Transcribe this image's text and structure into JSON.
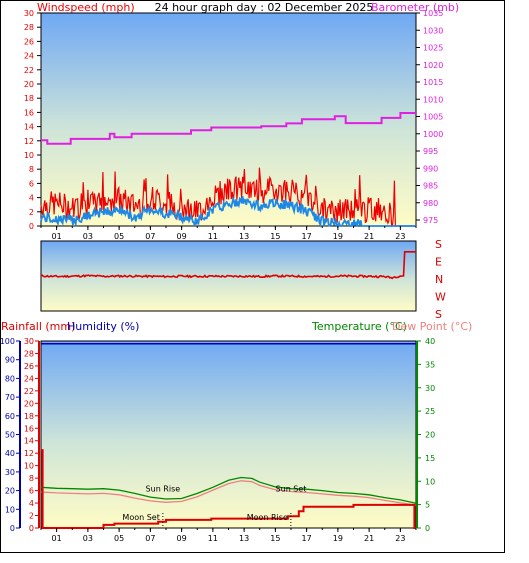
{
  "header": {
    "left_label": "Windspeed (mph)",
    "center_title": "24 hour graph day : 02 December 2025",
    "right_label": "Barometer (mb)"
  },
  "colors": {
    "wind": "#ee0000",
    "gust": "#1e88e5",
    "baro": "#e020e0",
    "direction": "#dd0000",
    "temperature": "#008800",
    "dewpoint": "#f08080",
    "rain": "#dd0000",
    "humidity": "#0000aa",
    "sky_top": "#6fa8f4",
    "sky_bottom": "#fffcc6"
  },
  "x_ticks": [
    "01",
    "03",
    "05",
    "07",
    "09",
    "11",
    "13",
    "15",
    "17",
    "19",
    "21",
    "23"
  ],
  "chart_data": [
    {
      "type": "line",
      "name": "wind-barometer",
      "x_unit": "hour",
      "y_left": {
        "label": "Windspeed (mph)",
        "range": [
          0,
          30
        ],
        "ticks": [
          0,
          2,
          4,
          6,
          8,
          10,
          12,
          14,
          16,
          18,
          20,
          22,
          24,
          26,
          28,
          30
        ]
      },
      "y_right": {
        "label": "Barometer (mb)",
        "range": [
          975,
          1035
        ],
        "ticks": [
          975,
          980,
          985,
          990,
          995,
          1000,
          1005,
          1010,
          1015,
          1020,
          1025,
          1030,
          1035
        ]
      },
      "x_range": [
        0,
        24
      ],
      "series": [
        {
          "key": "barometer",
          "x": [
            0,
            0.4,
            0.4,
            1.9,
            1.9,
            4.4,
            4.4,
            4.7,
            4.7,
            5.8,
            5.8,
            9.6,
            9.6,
            10.9,
            10.9,
            14.1,
            14.1,
            15.7,
            15.7,
            16.7,
            16.7,
            18.8,
            18.8,
            19.5,
            19.5,
            21.8,
            21.8,
            23.0,
            23.0,
            24
          ],
          "y": [
            998.1,
            998.1,
            997.1,
            997.1,
            998.5,
            998.5,
            1000,
            1000,
            999,
            999,
            1000,
            1000,
            1001,
            1001,
            1001.8,
            1001.8,
            1002.2,
            1002.2,
            1003.0,
            1003.0,
            1004.2,
            1004.2,
            1005.1,
            1005.1,
            1003.1,
            1003.1,
            1004.6,
            1004.6,
            1006.0,
            1006.0
          ]
        },
        {
          "key": "wind",
          "x": [
            0,
            1,
            2,
            3,
            4,
            5,
            6,
            7,
            8,
            9,
            10,
            11,
            12,
            13,
            14,
            15,
            16,
            17,
            18,
            19,
            20,
            21,
            22,
            23,
            24
          ],
          "y": [
            3.0,
            3.2,
            2.5,
            2.8,
            3.5,
            3.8,
            2.9,
            4.0,
            3.2,
            2.8,
            1.8,
            4.2,
            5.1,
            5.4,
            4.8,
            5.2,
            5.0,
            4.2,
            2.2,
            2.0,
            2.2,
            2.3,
            2.5,
            0.0,
            0.0
          ]
        },
        {
          "key": "gust",
          "x": [
            0,
            1,
            2,
            3,
            4,
            5,
            6,
            7,
            8,
            9,
            10,
            11,
            12,
            13,
            14,
            15,
            16,
            17,
            18,
            19,
            20,
            21,
            22,
            23,
            24
          ],
          "y": [
            1.2,
            1.0,
            0.8,
            1.4,
            2.0,
            2.3,
            1.2,
            2.4,
            1.8,
            1.3,
            0.6,
            2.4,
            3.0,
            3.6,
            2.8,
            3.2,
            2.9,
            2.1,
            0.7,
            0.4,
            0.3,
            0.2,
            0.2,
            0.0,
            0.0
          ]
        }
      ]
    },
    {
      "type": "line",
      "name": "wind-direction",
      "y_labels": [
        "S",
        "E",
        "N",
        "W",
        "S"
      ],
      "x_range": [
        0,
        24
      ],
      "series": [
        {
          "key": "direction",
          "x": [
            0,
            1,
            2,
            3,
            4,
            5,
            6,
            7,
            8,
            9,
            10,
            11,
            12,
            13,
            14,
            15,
            16,
            17,
            18,
            19,
            20,
            21,
            22,
            22.4,
            23,
            23.2,
            23.2,
            24
          ],
          "y": [
            200,
            196,
            198,
            201,
            197,
            199,
            198,
            197,
            196,
            198,
            197,
            198,
            197,
            198,
            196,
            199,
            198,
            197,
            196,
            199,
            198,
            197,
            196,
            188,
            200,
            200,
            355,
            355
          ]
        }
      ]
    },
    {
      "type": "line",
      "name": "temperature-humidity-rain",
      "y_humidity": {
        "label": "Humidity (%)",
        "range": [
          0,
          100
        ],
        "ticks": [
          0,
          10,
          20,
          30,
          40,
          50,
          60,
          70,
          80,
          90,
          100
        ]
      },
      "y_rainfall": {
        "label": "Rainfall (mm)",
        "range": [
          0,
          30
        ],
        "ticks": [
          0,
          2,
          4,
          6,
          8,
          10,
          12,
          14,
          16,
          18,
          20,
          22,
          24,
          26,
          28,
          30
        ]
      },
      "y_temperature": {
        "label": "Temperature (°C)",
        "range": [
          0,
          40
        ],
        "ticks": [
          0,
          5,
          10,
          15,
          20,
          25,
          30,
          35,
          40
        ]
      },
      "dewpoint_label": "Dew Point (°C)",
      "x_range": [
        0,
        24
      ],
      "series": [
        {
          "key": "humidity",
          "x": [
            0,
            24
          ],
          "y": [
            98.5,
            98.5
          ]
        },
        {
          "key": "temperature",
          "x": [
            0,
            1,
            2,
            3,
            4,
            5,
            6,
            7,
            8,
            9,
            10,
            11,
            12,
            12.8,
            13.5,
            14,
            15,
            16,
            17,
            18,
            19,
            20,
            21,
            22,
            23,
            24
          ],
          "y": [
            8.7,
            8.5,
            8.4,
            8.3,
            8.4,
            8.1,
            7.4,
            6.6,
            6.2,
            6.3,
            7.4,
            8.7,
            10.2,
            10.8,
            10.6,
            9.8,
            8.8,
            8.4,
            8.3,
            8.0,
            7.6,
            7.4,
            7.1,
            6.5,
            6.0,
            5.3
          ]
        },
        {
          "key": "dewpoint",
          "x": [
            0,
            1,
            2,
            3,
            4,
            5,
            6,
            7,
            8,
            9,
            10,
            11,
            12,
            12.8,
            13.5,
            14,
            15,
            16,
            17,
            18,
            19,
            20,
            21,
            22,
            23,
            24
          ],
          "y": [
            7.7,
            7.5,
            7.4,
            7.3,
            7.4,
            7.1,
            6.4,
            5.8,
            5.5,
            5.7,
            6.7,
            8.1,
            9.5,
            10.1,
            9.9,
            9.1,
            8.2,
            7.8,
            7.6,
            7.3,
            7.0,
            6.8,
            6.5,
            5.9,
            5.4,
            4.9
          ]
        },
        {
          "key": "rainfall",
          "x": [
            0,
            0.1,
            0.1,
            4.0,
            4.0,
            4.7,
            4.7,
            7.5,
            7.5,
            8.0,
            8.0,
            10.9,
            10.9,
            15.8,
            15.8,
            16.5,
            16.5,
            16.8,
            16.8,
            20.0,
            20.0,
            23.9,
            23.9,
            24
          ],
          "y": [
            12.5,
            12.5,
            0.0,
            0.0,
            0.5,
            0.5,
            0.7,
            0.7,
            1.0,
            1.0,
            1.3,
            1.3,
            1.5,
            1.5,
            1.9,
            1.9,
            2.7,
            2.7,
            3.4,
            3.4,
            3.7,
            3.7,
            0.0,
            0.0
          ]
        }
      ],
      "annotations": [
        {
          "label": "Sun Rise",
          "x": 7.8
        },
        {
          "label": "Sun Set",
          "x": 16.0
        },
        {
          "label": "Moon Set",
          "x": 7.8
        },
        {
          "label": "Moon Rise",
          "x": 15.8
        }
      ]
    }
  ]
}
